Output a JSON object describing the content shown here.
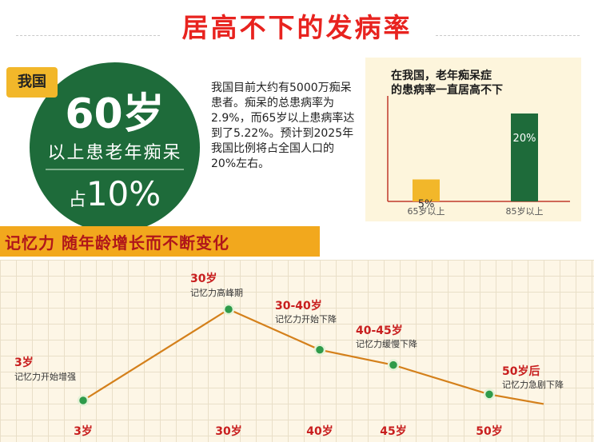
{
  "title": "居高不下的发病率",
  "circle": {
    "badge": "我国",
    "big": "60岁",
    "line": "以上患老年痴呆",
    "pct_prefix": "占",
    "pct_value": "10%"
  },
  "paragraph": "我国目前大约有5000万痴呆患者。痴呆的总患病率为2.9%，而65岁以上患病率达到了5.22%。预计到2025年我国比例将占全国人口的20%左右。",
  "colors": {
    "title_red": "#e8231f",
    "circle_green": "#1e6b3a",
    "badge_yellow": "#f2b72a",
    "bar_yellow": "#f2b72a",
    "bar_green": "#1e6b3a",
    "line_orange": "#d4801b",
    "marker_green": "#2e9b4a",
    "label_red": "#c81e1e",
    "header_orange": "#f2a81d"
  },
  "memory": {
    "header": "记忆力  随年龄增长而不断变化"
  },
  "chart_data": [
    {
      "type": "bar",
      "title": "在我国，老年痴呆症的患病率一直居高不下",
      "title_lines": [
        "在我国，老年痴呆症",
        "的患病率一直居高不下"
      ],
      "categories": [
        "65岁以上",
        "85岁以上"
      ],
      "values": [
        5,
        20
      ],
      "value_labels": [
        "5%",
        "20%"
      ],
      "ylim": [
        0,
        24
      ],
      "grid": false,
      "legend": "none"
    },
    {
      "type": "line",
      "title": "记忆力  随年龄增长而不断变化",
      "x": [
        "3岁",
        "30岁",
        "40岁",
        "45岁",
        "50岁"
      ],
      "series": [
        {
          "values": [
            1,
            10,
            6,
            4.5,
            1.6
          ]
        }
      ],
      "annotations": [
        {
          "point": 0,
          "head": "3岁",
          "sub": "记忆力开始增强"
        },
        {
          "point": 1,
          "head": "30岁",
          "sub": "记忆力高峰期"
        },
        {
          "point": 2,
          "head": "30-40岁",
          "sub": "记忆力开始下降"
        },
        {
          "point": 3,
          "head": "40-45岁",
          "sub": "记忆力缓慢下降"
        },
        {
          "point": 4,
          "head": "50岁后",
          "sub": "记忆力急剧下降"
        }
      ],
      "grid": true,
      "legend": "none"
    }
  ]
}
